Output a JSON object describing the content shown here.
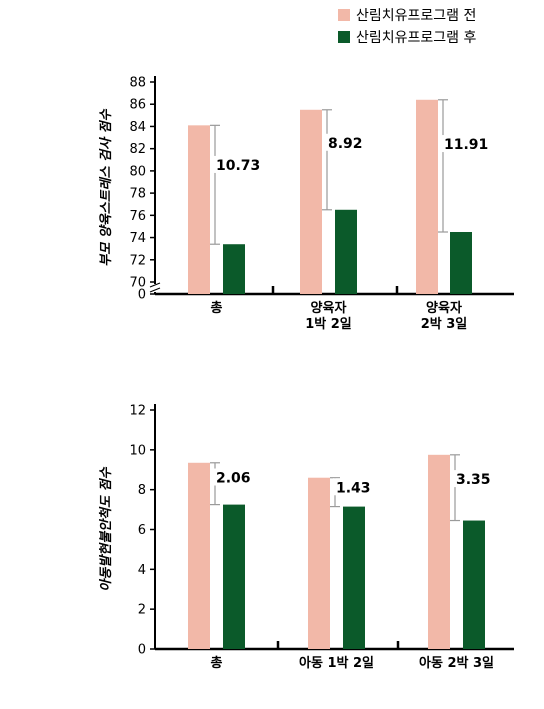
{
  "legend": {
    "items": [
      {
        "label": "산림치유프로그램 전",
        "color": "#F2B8A8"
      },
      {
        "label": "산림치유프로그램 후",
        "color": "#0B5A2A"
      }
    ]
  },
  "chart_data": [
    {
      "type": "bar",
      "ylabel": "부모 양육스트레스 검사 점수",
      "ylim": [
        70,
        88
      ],
      "axis_break": true,
      "yticks": [
        0,
        70,
        72,
        74,
        76,
        78,
        80,
        82,
        84,
        86,
        88
      ],
      "categories": [
        [
          "총"
        ],
        [
          "양육자",
          "1박 2일"
        ],
        [
          "양육자",
          "2박 3일"
        ]
      ],
      "series": [
        {
          "name": "산림치유프로그램 전",
          "values": [
            84.1,
            85.5,
            86.4
          ]
        },
        {
          "name": "산림치유프로그램 후",
          "values": [
            73.4,
            76.5,
            74.5
          ]
        }
      ],
      "differences": [
        "10.73",
        "8.92",
        "11.91"
      ]
    },
    {
      "type": "bar",
      "ylabel": "아동발현불안척도 점수",
      "ylim": [
        0,
        12
      ],
      "axis_break": false,
      "yticks": [
        0,
        2,
        4,
        6,
        8,
        10,
        12
      ],
      "categories": [
        [
          "총"
        ],
        [
          "아동 1박 2일"
        ],
        [
          "아동 2박 3일"
        ]
      ],
      "series": [
        {
          "name": "산림치유프로그램 전",
          "values": [
            9.35,
            8.6,
            9.75
          ]
        },
        {
          "name": "산림치유프로그램 후",
          "values": [
            7.25,
            7.15,
            6.45
          ]
        }
      ],
      "differences": [
        "2.06",
        "1.43",
        "3.35"
      ]
    }
  ]
}
